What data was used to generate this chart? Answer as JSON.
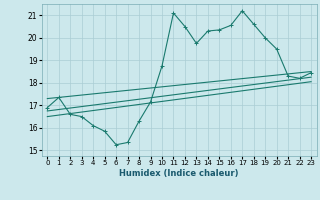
{
  "xlabel": "Humidex (Indice chaleur)",
  "bg_color": "#cce8ec",
  "line_color": "#1a7a6e",
  "grid_color": "#aacdd4",
  "xlim": [
    -0.5,
    23.5
  ],
  "ylim": [
    14.75,
    21.5
  ],
  "yticks": [
    15,
    16,
    17,
    18,
    19,
    20,
    21
  ],
  "xticks": [
    0,
    1,
    2,
    3,
    4,
    5,
    6,
    7,
    8,
    9,
    10,
    11,
    12,
    13,
    14,
    15,
    16,
    17,
    18,
    19,
    20,
    21,
    22,
    23
  ],
  "line1_x": [
    0,
    1,
    2,
    3,
    4,
    5,
    6,
    7,
    8,
    9,
    10,
    11,
    12,
    13,
    14,
    15,
    16,
    17,
    18,
    19,
    20,
    21,
    22,
    23
  ],
  "line1_y": [
    16.9,
    17.35,
    16.6,
    16.5,
    16.1,
    15.85,
    15.25,
    15.35,
    16.3,
    17.15,
    18.75,
    21.1,
    20.5,
    19.75,
    20.3,
    20.35,
    20.55,
    21.2,
    20.6,
    20.0,
    19.5,
    18.3,
    18.2,
    18.45
  ],
  "line2_x": [
    0,
    23
  ],
  "line2_y": [
    17.3,
    18.5
  ],
  "line3_x": [
    0,
    23
  ],
  "line3_y": [
    16.75,
    18.25
  ],
  "line4_x": [
    0,
    23
  ],
  "line4_y": [
    16.5,
    18.05
  ],
  "tick_fontsize": 5.0,
  "xlabel_fontsize": 6.0
}
